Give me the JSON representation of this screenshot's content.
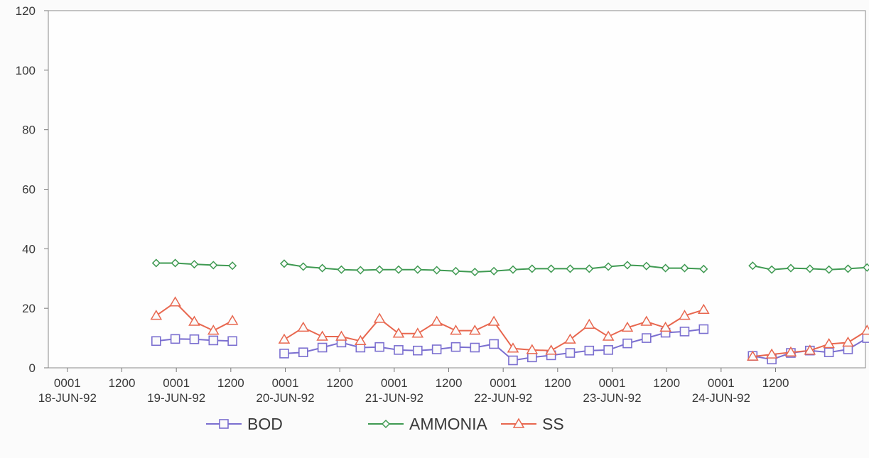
{
  "chart_data": {
    "type": "line",
    "ylim": [
      0,
      120
    ],
    "yticks": [
      0,
      20,
      40,
      60,
      80,
      100,
      120
    ],
    "grid": false,
    "legend_position": "bottom",
    "x_ticks": [
      {
        "x": 0,
        "time": "0001",
        "date": "18-JUN-92"
      },
      {
        "x": 1,
        "time": "1200"
      },
      {
        "x": 2,
        "time": "0001",
        "date": "19-JUN-92"
      },
      {
        "x": 3,
        "time": "1200"
      },
      {
        "x": 4,
        "time": "0001",
        "date": "20-JUN-92"
      },
      {
        "x": 5,
        "time": "1200"
      },
      {
        "x": 6,
        "time": "0001",
        "date": "21-JUN-92"
      },
      {
        "x": 7,
        "time": "1200"
      },
      {
        "x": 8,
        "time": "0001",
        "date": "22-JUN-92"
      },
      {
        "x": 9,
        "time": "1200"
      },
      {
        "x": 10,
        "time": "0001",
        "date": "23-JUN-92"
      },
      {
        "x": 11,
        "time": "1200"
      },
      {
        "x": 12,
        "time": "0001",
        "date": "24-JUN-92"
      },
      {
        "x": 13,
        "time": "1200"
      }
    ],
    "xlim": [
      -0.35,
      14.65
    ],
    "series": [
      {
        "name": "BOD",
        "color": "#7b6fd0",
        "marker": "square",
        "segments": [
          [
            [
              1.63,
              9
            ],
            [
              1.98,
              9.7
            ],
            [
              2.33,
              9.6
            ],
            [
              2.68,
              9.2
            ],
            [
              3.03,
              9
            ]
          ],
          [
            [
              3.98,
              4.8
            ],
            [
              4.33,
              5.2
            ],
            [
              4.68,
              6.8
            ],
            [
              5.03,
              8.5
            ],
            [
              5.38,
              6.8
            ],
            [
              5.73,
              7
            ],
            [
              6.08,
              6
            ],
            [
              6.43,
              5.8
            ],
            [
              6.78,
              6.2
            ],
            [
              7.13,
              7
            ],
            [
              7.48,
              6.8
            ],
            [
              7.83,
              8
            ],
            [
              8.18,
              2.5
            ],
            [
              8.53,
              3.5
            ],
            [
              8.88,
              4.2
            ],
            [
              9.23,
              5
            ],
            [
              9.58,
              5.8
            ],
            [
              9.93,
              6
            ],
            [
              10.28,
              8.2
            ],
            [
              10.63,
              10
            ],
            [
              10.98,
              11.8
            ],
            [
              11.33,
              12.2
            ],
            [
              11.68,
              13
            ]
          ],
          [
            [
              12.58,
              4
            ],
            [
              12.93,
              2.8
            ],
            [
              13.28,
              5
            ],
            [
              13.63,
              5.8
            ],
            [
              13.98,
              5.2
            ],
            [
              14.33,
              6.2
            ],
            [
              14.68,
              10
            ],
            [
              15.03,
              10.5
            ]
          ]
        ]
      },
      {
        "name": "AMMONIA",
        "color": "#3f9a52",
        "marker": "diamond",
        "segments": [
          [
            [
              1.63,
              35.2
            ],
            [
              1.98,
              35.2
            ],
            [
              2.33,
              34.8
            ],
            [
              2.68,
              34.5
            ],
            [
              3.03,
              34.3
            ]
          ],
          [
            [
              3.98,
              35
            ],
            [
              4.33,
              34
            ],
            [
              4.68,
              33.5
            ],
            [
              5.03,
              33
            ],
            [
              5.38,
              32.8
            ],
            [
              5.73,
              33
            ],
            [
              6.08,
              33
            ],
            [
              6.43,
              33
            ],
            [
              6.78,
              32.8
            ],
            [
              7.13,
              32.5
            ],
            [
              7.48,
              32.2
            ],
            [
              7.83,
              32.5
            ],
            [
              8.18,
              33
            ],
            [
              8.53,
              33.3
            ],
            [
              8.88,
              33.3
            ],
            [
              9.23,
              33.3
            ],
            [
              9.58,
              33.3
            ],
            [
              9.93,
              34
            ],
            [
              10.28,
              34.5
            ],
            [
              10.63,
              34.2
            ],
            [
              10.98,
              33.5
            ],
            [
              11.33,
              33.5
            ],
            [
              11.68,
              33.2
            ]
          ],
          [
            [
              12.58,
              34.3
            ],
            [
              12.93,
              33
            ],
            [
              13.28,
              33.5
            ],
            [
              13.63,
              33.3
            ],
            [
              13.98,
              33
            ],
            [
              14.33,
              33.3
            ],
            [
              14.68,
              33.7
            ],
            [
              15.03,
              33
            ]
          ]
        ]
      },
      {
        "name": "SS",
        "color": "#e8674f",
        "marker": "triangle",
        "segments": [
          [
            [
              1.63,
              17.5
            ],
            [
              1.98,
              22
            ],
            [
              2.33,
              15.5
            ],
            [
              2.68,
              12.5
            ],
            [
              3.03,
              15.8
            ]
          ],
          [
            [
              3.98,
              9.5
            ],
            [
              4.33,
              13.5
            ],
            [
              4.68,
              10.5
            ],
            [
              5.03,
              10.5
            ],
            [
              5.38,
              9
            ],
            [
              5.73,
              16.5
            ],
            [
              6.08,
              11.5
            ],
            [
              6.43,
              11.5
            ],
            [
              6.78,
              15.5
            ],
            [
              7.13,
              12.5
            ],
            [
              7.48,
              12.5
            ],
            [
              7.83,
              15.5
            ],
            [
              8.18,
              6.5
            ],
            [
              8.53,
              6
            ],
            [
              8.88,
              5.8
            ],
            [
              9.23,
              9.5
            ],
            [
              9.58,
              14.5
            ],
            [
              9.93,
              10.5
            ],
            [
              10.28,
              13.5
            ],
            [
              10.63,
              15.5
            ],
            [
              10.98,
              13.5
            ],
            [
              11.33,
              17.5
            ],
            [
              11.68,
              19.5
            ]
          ],
          [
            [
              12.58,
              3.8
            ],
            [
              12.93,
              4.5
            ],
            [
              13.28,
              5.2
            ],
            [
              13.63,
              5.8
            ],
            [
              13.98,
              8
            ],
            [
              14.33,
              8.5
            ],
            [
              14.68,
              12.5
            ],
            [
              15.03,
              14.5
            ]
          ]
        ]
      }
    ]
  }
}
